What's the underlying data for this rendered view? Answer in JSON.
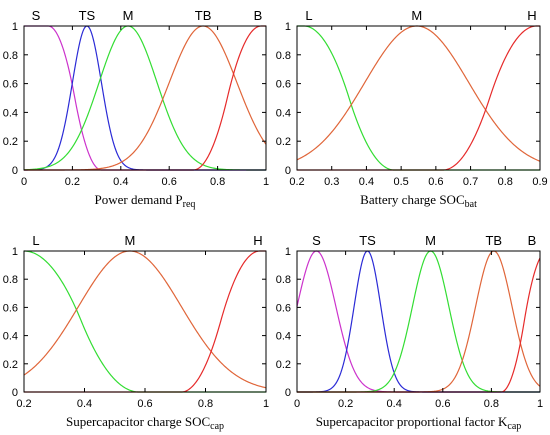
{
  "chart_data": [
    {
      "type": "line",
      "xlabel": "Power demand",
      "xlabel_sub": "req",
      "xlabel_var": "P",
      "xlim": [
        0,
        1
      ],
      "ylim": [
        0,
        1
      ],
      "xticks": [
        "0",
        "0.2",
        "0.4",
        "0.6",
        "0.8",
        "1"
      ],
      "yticks": [
        "0",
        "0.2",
        "0.4",
        "0.6",
        "0.8",
        "1"
      ],
      "grid": false,
      "series": [
        {
          "name": "S",
          "color": "#cc33cc",
          "shape": "zmf",
          "params": [
            0.1,
            0.32
          ]
        },
        {
          "name": "TS",
          "color": "#2b2bd6",
          "shape": "gauss",
          "params": [
            0.26,
            0.06
          ]
        },
        {
          "name": "M",
          "color": "#33dd33",
          "shape": "gauss",
          "params": [
            0.43,
            0.12
          ]
        },
        {
          "name": "TB",
          "color": "#e0663a",
          "shape": "gauss",
          "params": [
            0.74,
            0.14
          ]
        },
        {
          "name": "B",
          "color": "#e62b2b",
          "shape": "smf",
          "params": [
            0.7,
            0.98
          ]
        }
      ]
    },
    {
      "type": "line",
      "xlabel": "Battery charge",
      "xlabel_var": "SOC",
      "xlabel_sub": "bat",
      "xlim": [
        0.2,
        0.9
      ],
      "ylim": [
        0,
        1
      ],
      "xticks": [
        "0.2",
        "0.3",
        "0.4",
        "0.5",
        "0.6",
        "0.7",
        "0.8",
        "0.9"
      ],
      "yticks": [
        "0",
        "0.2",
        "0.4",
        "0.6",
        "0.8",
        "1"
      ],
      "grid": false,
      "series": [
        {
          "name": "L",
          "color": "#33dd33",
          "shape": "zmf",
          "params": [
            0.22,
            0.48
          ]
        },
        {
          "name": "M",
          "color": "#e0663a",
          "shape": "gauss",
          "params": [
            0.545,
            0.15
          ]
        },
        {
          "name": "H",
          "color": "#e62b2b",
          "shape": "smf",
          "params": [
            0.62,
            0.89
          ]
        }
      ]
    },
    {
      "type": "line",
      "xlabel": "Supercapacitor charge",
      "xlabel_var": "SOC",
      "xlabel_sub": "cap",
      "xlim": [
        0.2,
        1
      ],
      "ylim": [
        0,
        1
      ],
      "xticks": [
        "0.2",
        "0.4",
        "0.6",
        "0.8",
        "1"
      ],
      "yticks": [
        "0",
        "0.2",
        "0.4",
        "0.6",
        "0.8",
        "1"
      ],
      "grid": false,
      "series": [
        {
          "name": "L",
          "color": "#33dd33",
          "shape": "zmf",
          "params": [
            0.2,
            0.58
          ]
        },
        {
          "name": "M",
          "color": "#e0663a",
          "shape": "gauss",
          "params": [
            0.55,
            0.17
          ]
        },
        {
          "name": "H",
          "color": "#e62b2b",
          "shape": "smf",
          "params": [
            0.72,
            0.98
          ]
        }
      ]
    },
    {
      "type": "line",
      "xlabel": "Supercapacitor proportional factor",
      "xlabel_var": "K",
      "xlabel_sub": "cap",
      "xlim": [
        0,
        1
      ],
      "ylim": [
        0,
        1
      ],
      "xticks": [
        "0",
        "0.2",
        "0.4",
        "0.6",
        "0.8",
        "1"
      ],
      "yticks": [
        "0",
        "0.2",
        "0.4",
        "0.6",
        "0.8",
        "1"
      ],
      "grid": false,
      "series": [
        {
          "name": "S",
          "color": "#cc33cc",
          "shape": "gauss",
          "params": [
            0.08,
            0.08
          ]
        },
        {
          "name": "TS",
          "color": "#2b2bd6",
          "shape": "gauss",
          "params": [
            0.29,
            0.055
          ]
        },
        {
          "name": "M",
          "color": "#33dd33",
          "shape": "gauss",
          "params": [
            0.55,
            0.075
          ]
        },
        {
          "name": "TB",
          "color": "#e0663a",
          "shape": "gauss",
          "params": [
            0.81,
            0.075
          ]
        },
        {
          "name": "B",
          "color": "#e62b2b",
          "shape": "smf",
          "params": [
            0.84,
            1.03
          ]
        }
      ]
    }
  ]
}
